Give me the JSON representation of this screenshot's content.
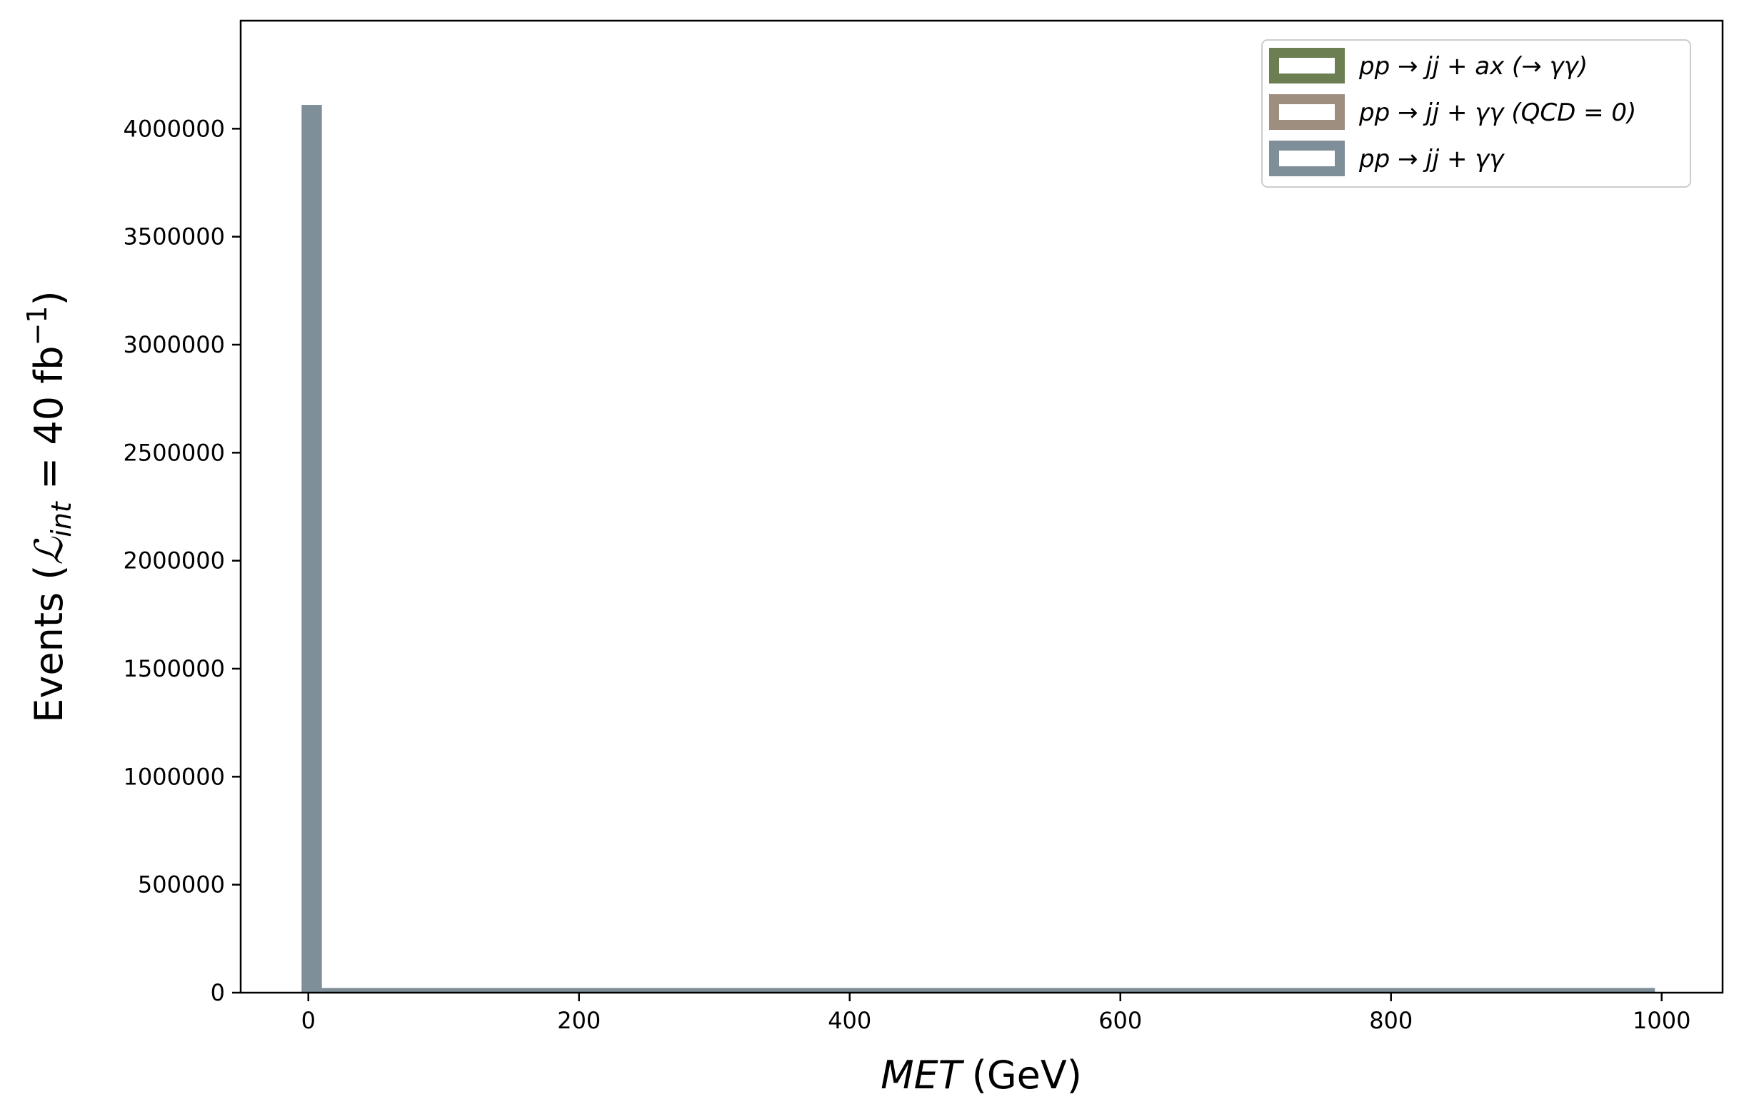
{
  "chart_data": {
    "type": "bar",
    "xlabel": "MET (GeV)",
    "xlabel_var": "MET",
    "xlabel_unit": "(GeV)",
    "ylabel": "Events (ℒint = 40 fb⁻¹)",
    "ylabel_prefix": "Events (",
    "ylabel_L": "ℒ",
    "ylabel_sub": "int",
    "ylabel_mid": " = 40 fb",
    "ylabel_sup": "−1",
    "ylabel_suffix": ")",
    "xlim": [
      -50,
      1045
    ],
    "ylim": [
      0,
      4500000
    ],
    "x_ticks": [
      0,
      200,
      400,
      600,
      800,
      1000
    ],
    "y_ticks": [
      0,
      500000,
      1000000,
      1500000,
      2000000,
      2500000,
      3000000,
      3500000,
      4000000
    ],
    "legend_position": "top-right",
    "series": [
      {
        "name": "pp → jj + ax (→ γγ)",
        "color": "#6b7f52",
        "bin_edges": [],
        "counts": []
      },
      {
        "name": "pp → jj + γγ (QCD = 0)",
        "color": "#9e8e80",
        "bin_edges": [],
        "counts": []
      },
      {
        "name": "pp → jj + γγ",
        "color": "#7f8f99",
        "bin_edges": [
          -5,
          10,
          995
        ],
        "counts": [
          4110000,
          22000
        ]
      }
    ]
  }
}
